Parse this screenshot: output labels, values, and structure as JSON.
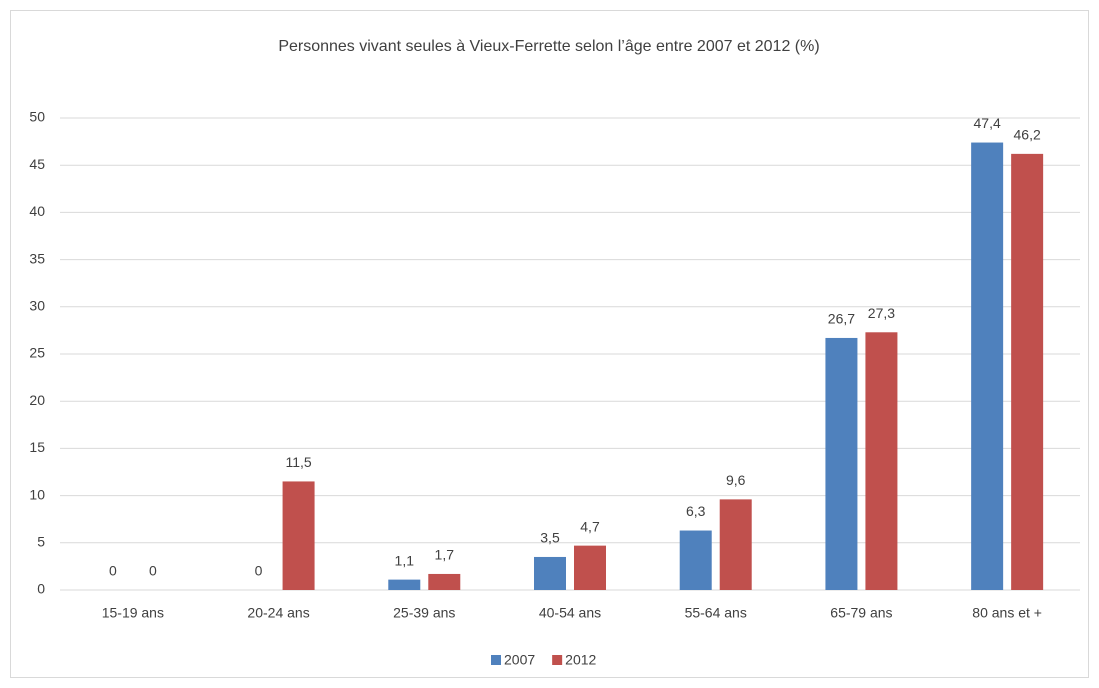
{
  "chart_data": {
    "type": "bar",
    "title": "Personnes vivant seules à Vieux-Ferrette selon l’âge entre 2007 et 2012 (%)",
    "categories": [
      "15-19 ans",
      "20-24 ans",
      "25-39 ans",
      "40-54 ans",
      "55-64 ans",
      "65-79 ans",
      "80 ans et +"
    ],
    "series": [
      {
        "name": "2007",
        "color": "#4f81bd",
        "values": [
          0,
          0,
          1.1,
          3.5,
          6.3,
          26.7,
          47.4
        ],
        "value_labels": [
          "0",
          "0",
          "1,1",
          "3,5",
          "6,3",
          "26,7",
          "47,4"
        ]
      },
      {
        "name": "2012",
        "color": "#c0504d",
        "values": [
          0,
          11.5,
          1.7,
          4.7,
          9.6,
          27.3,
          46.2
        ],
        "value_labels": [
          "0",
          "11,5",
          "1,7",
          "4,7",
          "9,6",
          "27,3",
          "46,2"
        ]
      }
    ],
    "ylim": [
      0,
      50
    ],
    "yticks": [
      0,
      5,
      10,
      15,
      20,
      25,
      30,
      35,
      40,
      45,
      50
    ],
    "grid": true,
    "legend": "bottom"
  }
}
